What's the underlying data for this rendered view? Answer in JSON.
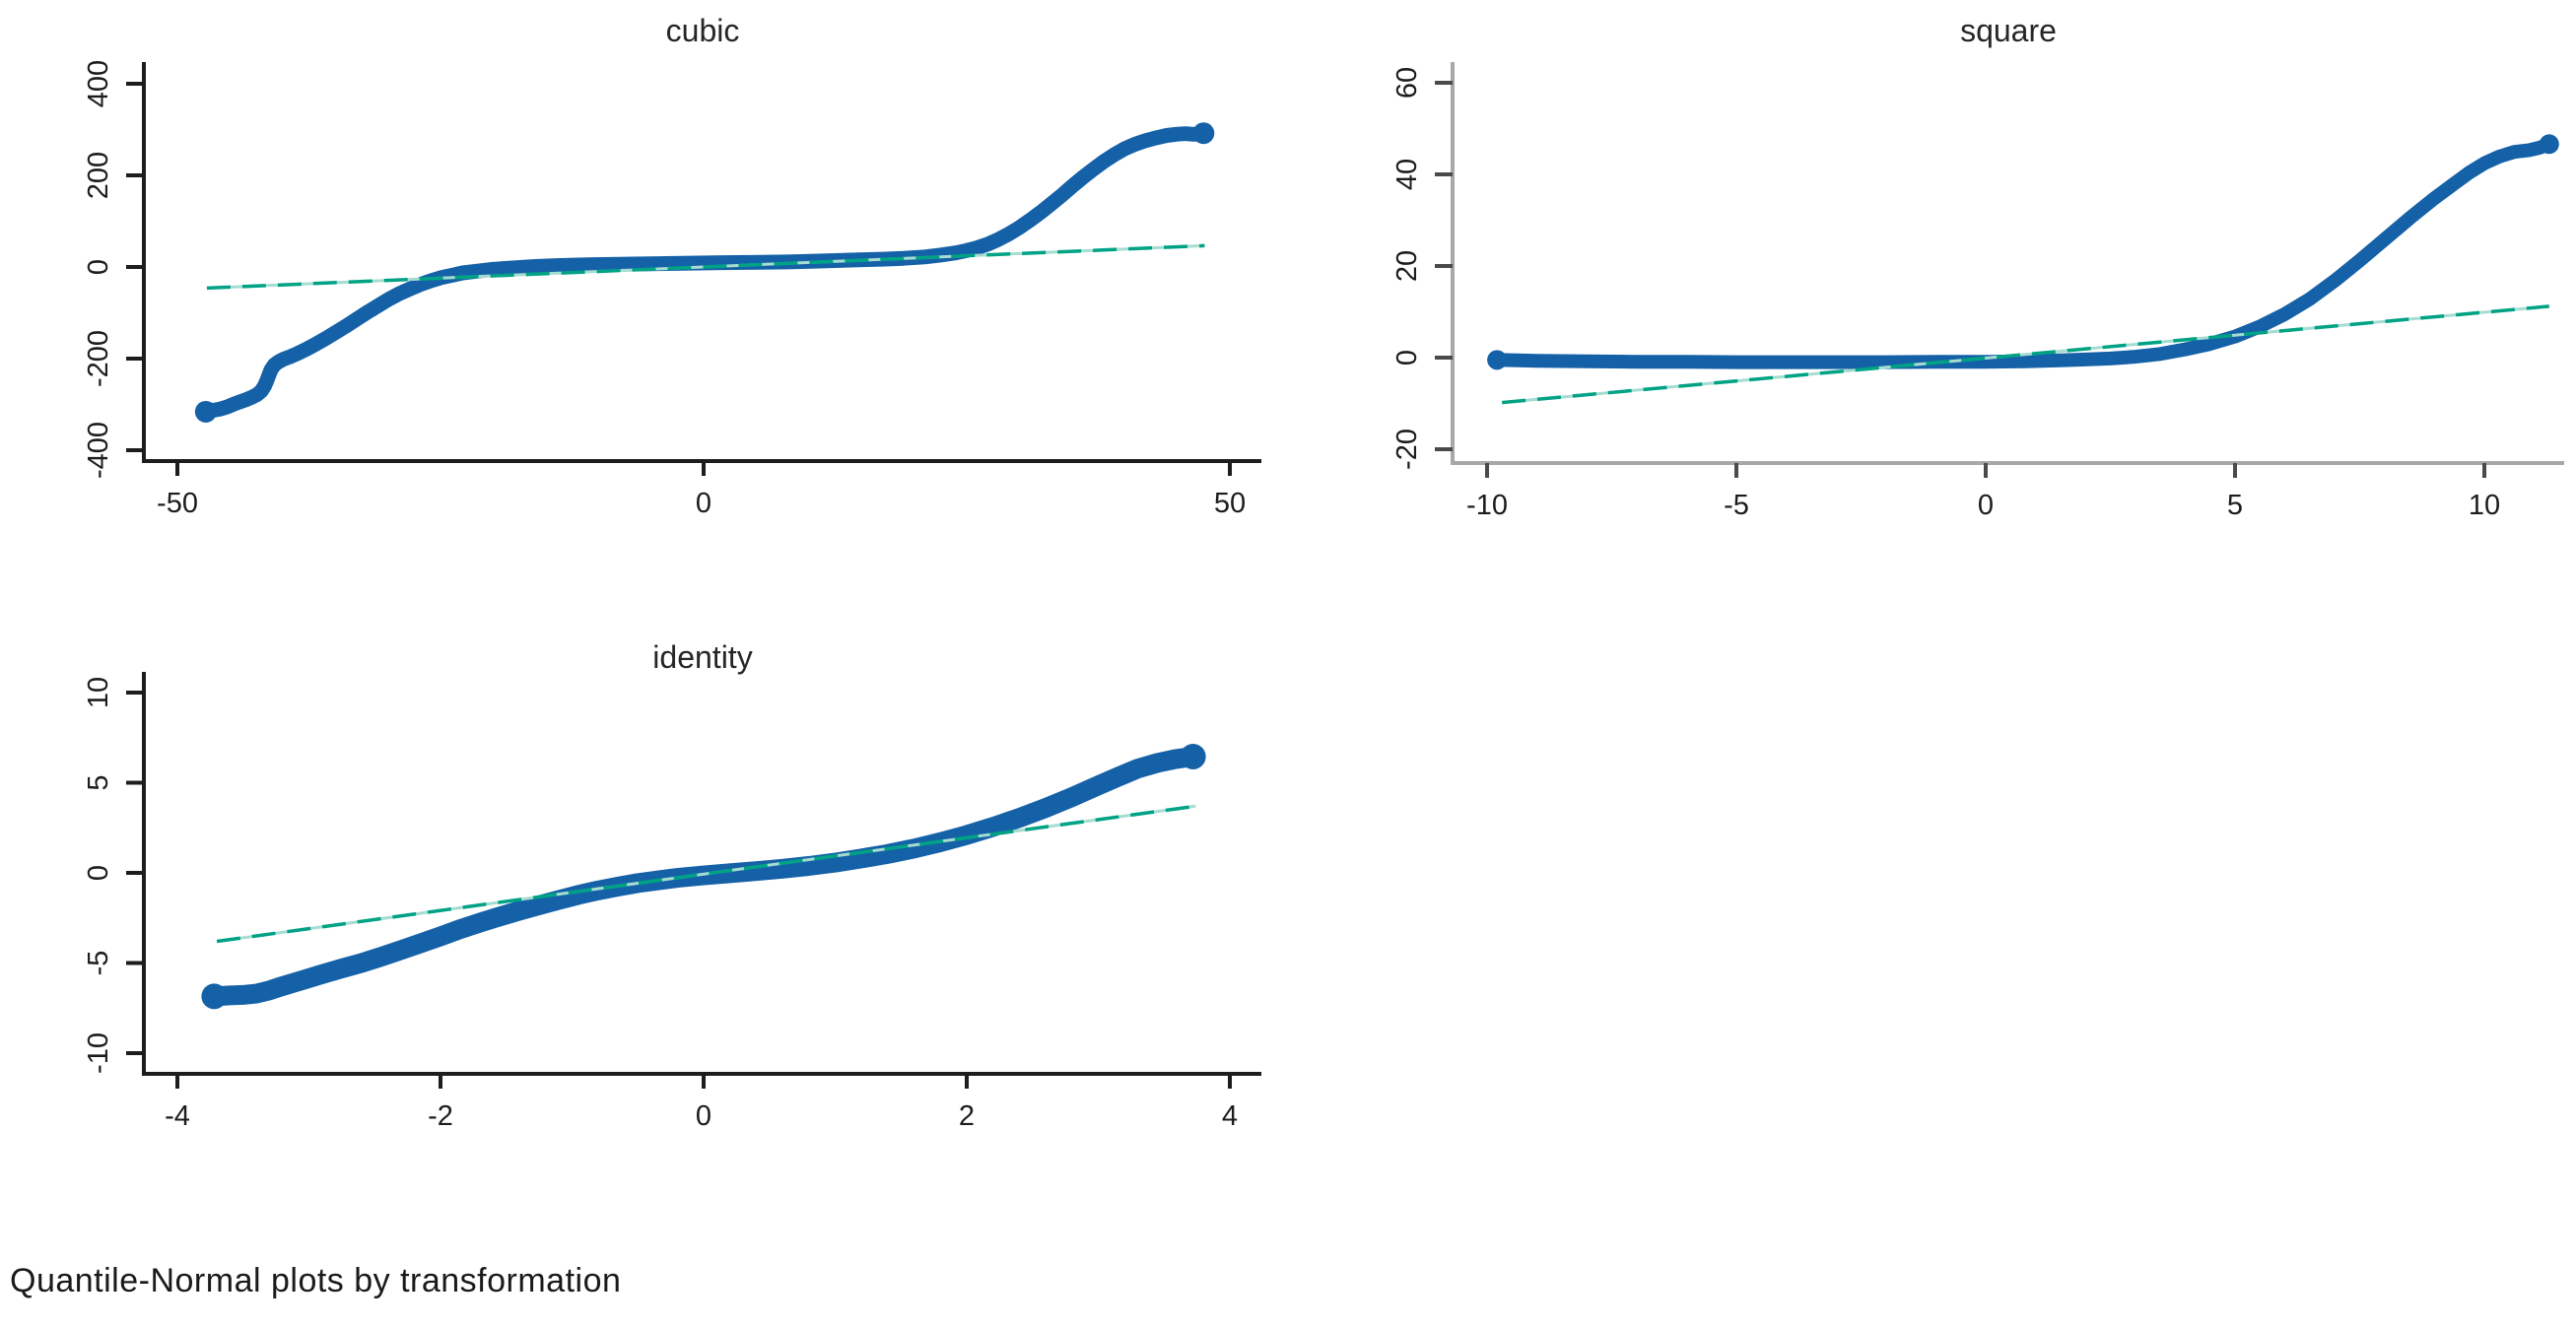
{
  "caption": "Quantile-Normal plots by transformation",
  "colors": {
    "background": "#ffffff",
    "marker_blue": "#1561a8",
    "line_teal": "#00a285",
    "line_teal_light": "#a5ddd0",
    "axis_dark": "#1d1d1d",
    "axis_gray": "#a8a8a8",
    "tick_dark": "#1d1d1d",
    "tick_gray": "#4a4a4a",
    "label_text": "#1c1c1c",
    "title_text": "#262626"
  },
  "chart_data": [
    {
      "id": "cubic",
      "type": "scatter",
      "title": "cubic",
      "xlabel": "",
      "ylabel": "",
      "grid": false,
      "legend": "none",
      "axis_style": "dark",
      "xlim": [
        -53,
        53
      ],
      "ylim": [
        -445,
        447
      ],
      "x_ticks": [
        {
          "v": -50,
          "t": "-50"
        },
        {
          "v": 0,
          "t": "0"
        },
        {
          "v": 50,
          "t": "50"
        }
      ],
      "y_ticks": [
        {
          "v": 400,
          "t": "400"
        },
        {
          "v": 200,
          "t": "200"
        },
        {
          "v": 0,
          "t": "0"
        },
        {
          "v": -200,
          "t": "-200"
        },
        {
          "v": -400,
          "t": "-400"
        }
      ],
      "ref_line": {
        "x1": -47.2,
        "y1": -46.0,
        "x2": 47.6,
        "y2": 46.5
      },
      "points": [
        [
          -47.3,
          -316
        ],
        [
          -46.6,
          -313
        ],
        [
          -45.9,
          -310
        ],
        [
          -45.2,
          -305
        ],
        [
          -44.6,
          -299
        ],
        [
          -44.0,
          -294
        ],
        [
          -43.4,
          -289
        ],
        [
          -42.9,
          -284
        ],
        [
          -42.4,
          -278
        ],
        [
          -42.0,
          -270
        ],
        [
          -41.7,
          -259
        ],
        [
          -41.5,
          -248
        ],
        [
          -41.3,
          -236
        ],
        [
          -41.1,
          -224
        ],
        [
          -40.8,
          -214
        ],
        [
          -40.4,
          -207
        ],
        [
          -39.9,
          -201
        ],
        [
          -39.3,
          -196
        ],
        [
          -38.6,
          -189
        ],
        [
          -37.8,
          -180
        ],
        [
          -36.9,
          -169
        ],
        [
          -35.9,
          -156
        ],
        [
          -34.9,
          -142
        ],
        [
          -33.9,
          -128
        ],
        [
          -32.9,
          -113
        ],
        [
          -31.9,
          -98
        ],
        [
          -30.9,
          -84
        ],
        [
          -29.9,
          -70
        ],
        [
          -28.9,
          -58
        ],
        [
          -27.9,
          -48
        ],
        [
          -26.9,
          -38
        ],
        [
          -25.9,
          -30
        ],
        [
          -24.9,
          -23
        ],
        [
          -23.9,
          -18
        ],
        [
          -22.9,
          -13
        ],
        [
          -21.5,
          -9
        ],
        [
          -20.0,
          -5
        ],
        [
          -18.0,
          -2
        ],
        [
          -16.0,
          1
        ],
        [
          -14.0,
          3
        ],
        [
          -11.0,
          5
        ],
        [
          -8.0,
          6
        ],
        [
          -5.0,
          7
        ],
        [
          -2.0,
          8
        ],
        [
          1.0,
          9
        ],
        [
          4.0,
          10
        ],
        [
          8.0,
          11
        ],
        [
          11.0,
          13
        ],
        [
          14.0,
          15
        ],
        [
          17.0,
          17
        ],
        [
          19.0,
          19
        ],
        [
          21.0,
          22
        ],
        [
          22.5,
          26
        ],
        [
          24.0,
          31
        ],
        [
          25.0,
          36
        ],
        [
          26.0,
          42
        ],
        [
          27.0,
          50
        ],
        [
          28.0,
          60
        ],
        [
          29.0,
          72
        ],
        [
          30.0,
          86
        ],
        [
          31.0,
          102
        ],
        [
          32.0,
          119
        ],
        [
          33.0,
          137
        ],
        [
          34.0,
          156
        ],
        [
          35.0,
          176
        ],
        [
          36.0,
          195
        ],
        [
          37.0,
          213
        ],
        [
          38.0,
          230
        ],
        [
          39.0,
          245
        ],
        [
          40.0,
          258
        ],
        [
          41.0,
          268
        ],
        [
          42.0,
          276
        ],
        [
          43.0,
          282
        ],
        [
          44.0,
          287
        ],
        [
          45.0,
          290
        ],
        [
          45.8,
          291
        ],
        [
          46.4,
          290
        ],
        [
          47.0,
          290
        ],
        [
          47.5,
          292
        ]
      ]
    },
    {
      "id": "square",
      "type": "scatter",
      "title": "square",
      "xlabel": "",
      "ylabel": "",
      "grid": false,
      "legend": "none",
      "axis_style": "gray",
      "xlim": [
        -10.7,
        11.6
      ],
      "ylim": [
        -25,
        65
      ],
      "x_ticks": [
        {
          "v": -10,
          "t": "-10"
        },
        {
          "v": -5,
          "t": "-5"
        },
        {
          "v": 0,
          "t": "0"
        },
        {
          "v": 5,
          "t": "5"
        },
        {
          "v": 10,
          "t": "10"
        }
      ],
      "y_ticks": [
        {
          "v": 60,
          "t": "60"
        },
        {
          "v": 40,
          "t": "40"
        },
        {
          "v": 20,
          "t": "20"
        },
        {
          "v": 0,
          "t": "0"
        },
        {
          "v": -20,
          "t": "-20"
        }
      ],
      "ref_line": {
        "x1": -9.7,
        "y1": -9.8,
        "x2": 11.3,
        "y2": 11.2
      },
      "points": [
        [
          -9.8,
          -0.5
        ],
        [
          -9.4,
          -0.6
        ],
        [
          -9.0,
          -0.7
        ],
        [
          -8.0,
          -0.8
        ],
        [
          -7.0,
          -0.9
        ],
        [
          -6.0,
          -0.9
        ],
        [
          -5.0,
          -1.0
        ],
        [
          -4.0,
          -1.0
        ],
        [
          -3.0,
          -1.0
        ],
        [
          -2.0,
          -1.0
        ],
        [
          -1.0,
          -0.9
        ],
        [
          0.0,
          -0.9
        ],
        [
          0.8,
          -0.8
        ],
        [
          1.5,
          -0.6
        ],
        [
          2.0,
          -0.4
        ],
        [
          2.5,
          -0.2
        ],
        [
          3.0,
          0.2
        ],
        [
          3.5,
          0.8
        ],
        [
          4.0,
          1.8
        ],
        [
          4.5,
          3.0
        ],
        [
          5.0,
          4.6
        ],
        [
          5.5,
          6.8
        ],
        [
          6.0,
          9.5
        ],
        [
          6.5,
          12.8
        ],
        [
          7.0,
          16.8
        ],
        [
          7.5,
          21.2
        ],
        [
          8.0,
          25.8
        ],
        [
          8.5,
          30.4
        ],
        [
          9.0,
          34.8
        ],
        [
          9.4,
          38.0
        ],
        [
          9.7,
          40.4
        ],
        [
          10.0,
          42.4
        ],
        [
          10.3,
          43.9
        ],
        [
          10.6,
          44.9
        ],
        [
          10.9,
          45.3
        ],
        [
          11.1,
          45.8
        ],
        [
          11.3,
          46.6
        ]
      ]
    },
    {
      "id": "identity",
      "type": "scatter",
      "title": "identity",
      "xlabel": "",
      "ylabel": "",
      "grid": false,
      "legend": "none",
      "axis_style": "dark",
      "xlim": [
        -4.25,
        4.25
      ],
      "ylim": [
        -11.2,
        11.2
      ],
      "x_ticks": [
        {
          "v": -4,
          "t": "-4"
        },
        {
          "v": -2,
          "t": "-2"
        },
        {
          "v": 0,
          "t": "0"
        },
        {
          "v": 2,
          "t": "2"
        },
        {
          "v": 4,
          "t": "4"
        }
      ],
      "y_ticks": [
        {
          "v": 10,
          "t": "10"
        },
        {
          "v": 5,
          "t": "5"
        },
        {
          "v": 0,
          "t": "0"
        },
        {
          "v": -5,
          "t": "-5"
        },
        {
          "v": -10,
          "t": "-10"
        }
      ],
      "ref_line": {
        "x1": -3.7,
        "y1": -3.8,
        "x2": 3.74,
        "y2": 3.7
      },
      "points": [
        [
          -3.72,
          -6.85
        ],
        [
          -3.6,
          -6.8
        ],
        [
          -3.5,
          -6.77
        ],
        [
          -3.4,
          -6.7
        ],
        [
          -3.3,
          -6.52
        ],
        [
          -3.2,
          -6.28
        ],
        [
          -3.05,
          -5.95
        ],
        [
          -2.9,
          -5.62
        ],
        [
          -2.75,
          -5.3
        ],
        [
          -2.6,
          -5.0
        ],
        [
          -2.45,
          -4.65
        ],
        [
          -2.3,
          -4.28
        ],
        [
          -2.15,
          -3.9
        ],
        [
          -2.0,
          -3.52
        ],
        [
          -1.85,
          -3.12
        ],
        [
          -1.7,
          -2.76
        ],
        [
          -1.55,
          -2.42
        ],
        [
          -1.4,
          -2.1
        ],
        [
          -1.25,
          -1.8
        ],
        [
          -1.1,
          -1.5
        ],
        [
          -0.95,
          -1.22
        ],
        [
          -0.8,
          -0.97
        ],
        [
          -0.65,
          -0.76
        ],
        [
          -0.5,
          -0.57
        ],
        [
          -0.35,
          -0.42
        ],
        [
          -0.2,
          -0.28
        ],
        [
          0.0,
          -0.14
        ],
        [
          0.2,
          -0.02
        ],
        [
          0.4,
          0.1
        ],
        [
          0.6,
          0.23
        ],
        [
          0.8,
          0.38
        ],
        [
          1.0,
          0.57
        ],
        [
          1.2,
          0.8
        ],
        [
          1.4,
          1.05
        ],
        [
          1.6,
          1.35
        ],
        [
          1.8,
          1.7
        ],
        [
          2.0,
          2.1
        ],
        [
          2.2,
          2.55
        ],
        [
          2.4,
          3.05
        ],
        [
          2.6,
          3.6
        ],
        [
          2.8,
          4.2
        ],
        [
          3.0,
          4.85
        ],
        [
          3.15,
          5.32
        ],
        [
          3.3,
          5.78
        ],
        [
          3.45,
          6.1
        ],
        [
          3.58,
          6.3
        ],
        [
          3.72,
          6.45
        ]
      ]
    }
  ]
}
